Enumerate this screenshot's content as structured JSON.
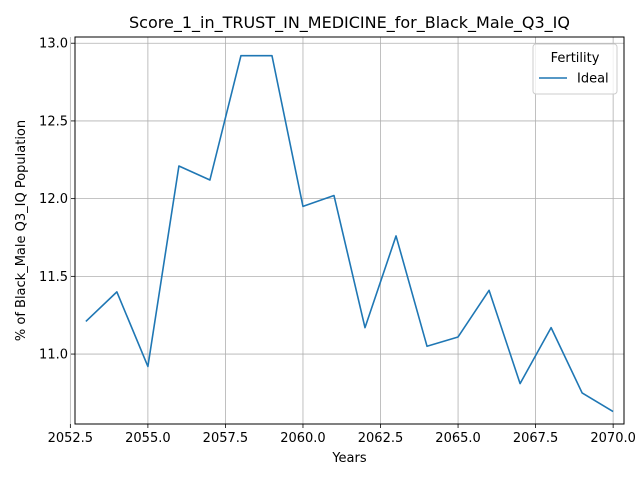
{
  "chart_data": {
    "type": "line",
    "title": "Score_1_in_TRUST_IN_MEDICINE_for_Black_Male_Q3_IQ",
    "xlabel": "Years",
    "ylabel": "% of Black_Male Q3_IQ Population",
    "xlim": [
      2052.65,
      2070.35
    ],
    "ylim": [
      10.55,
      13.04
    ],
    "xticks": [
      2052.5,
      2055.0,
      2057.5,
      2060.0,
      2062.5,
      2065.0,
      2067.5,
      2070.0
    ],
    "xtick_labels": [
      "2052.5",
      "2055.0",
      "2057.5",
      "2060.0",
      "2062.5",
      "2065.0",
      "2067.5",
      "2070.0"
    ],
    "yticks": [
      11.0,
      11.5,
      12.0,
      12.5,
      13.0
    ],
    "ytick_labels": [
      "11.0",
      "11.5",
      "12.0",
      "12.5",
      "13.0"
    ],
    "grid": true,
    "legend": {
      "title": "Fertility",
      "placement": "top-right"
    },
    "series": [
      {
        "name": "Ideal",
        "color": "#1f77b4",
        "x": [
          2053,
          2054,
          2055,
          2056,
          2057,
          2058,
          2059,
          2060,
          2061,
          2062,
          2063,
          2064,
          2065,
          2066,
          2067,
          2068,
          2069,
          2070
        ],
        "y": [
          11.21,
          11.4,
          10.92,
          12.21,
          12.12,
          12.92,
          12.92,
          11.95,
          12.02,
          11.17,
          11.76,
          11.05,
          11.11,
          11.41,
          10.81,
          11.17,
          10.75,
          10.63
        ]
      }
    ]
  }
}
